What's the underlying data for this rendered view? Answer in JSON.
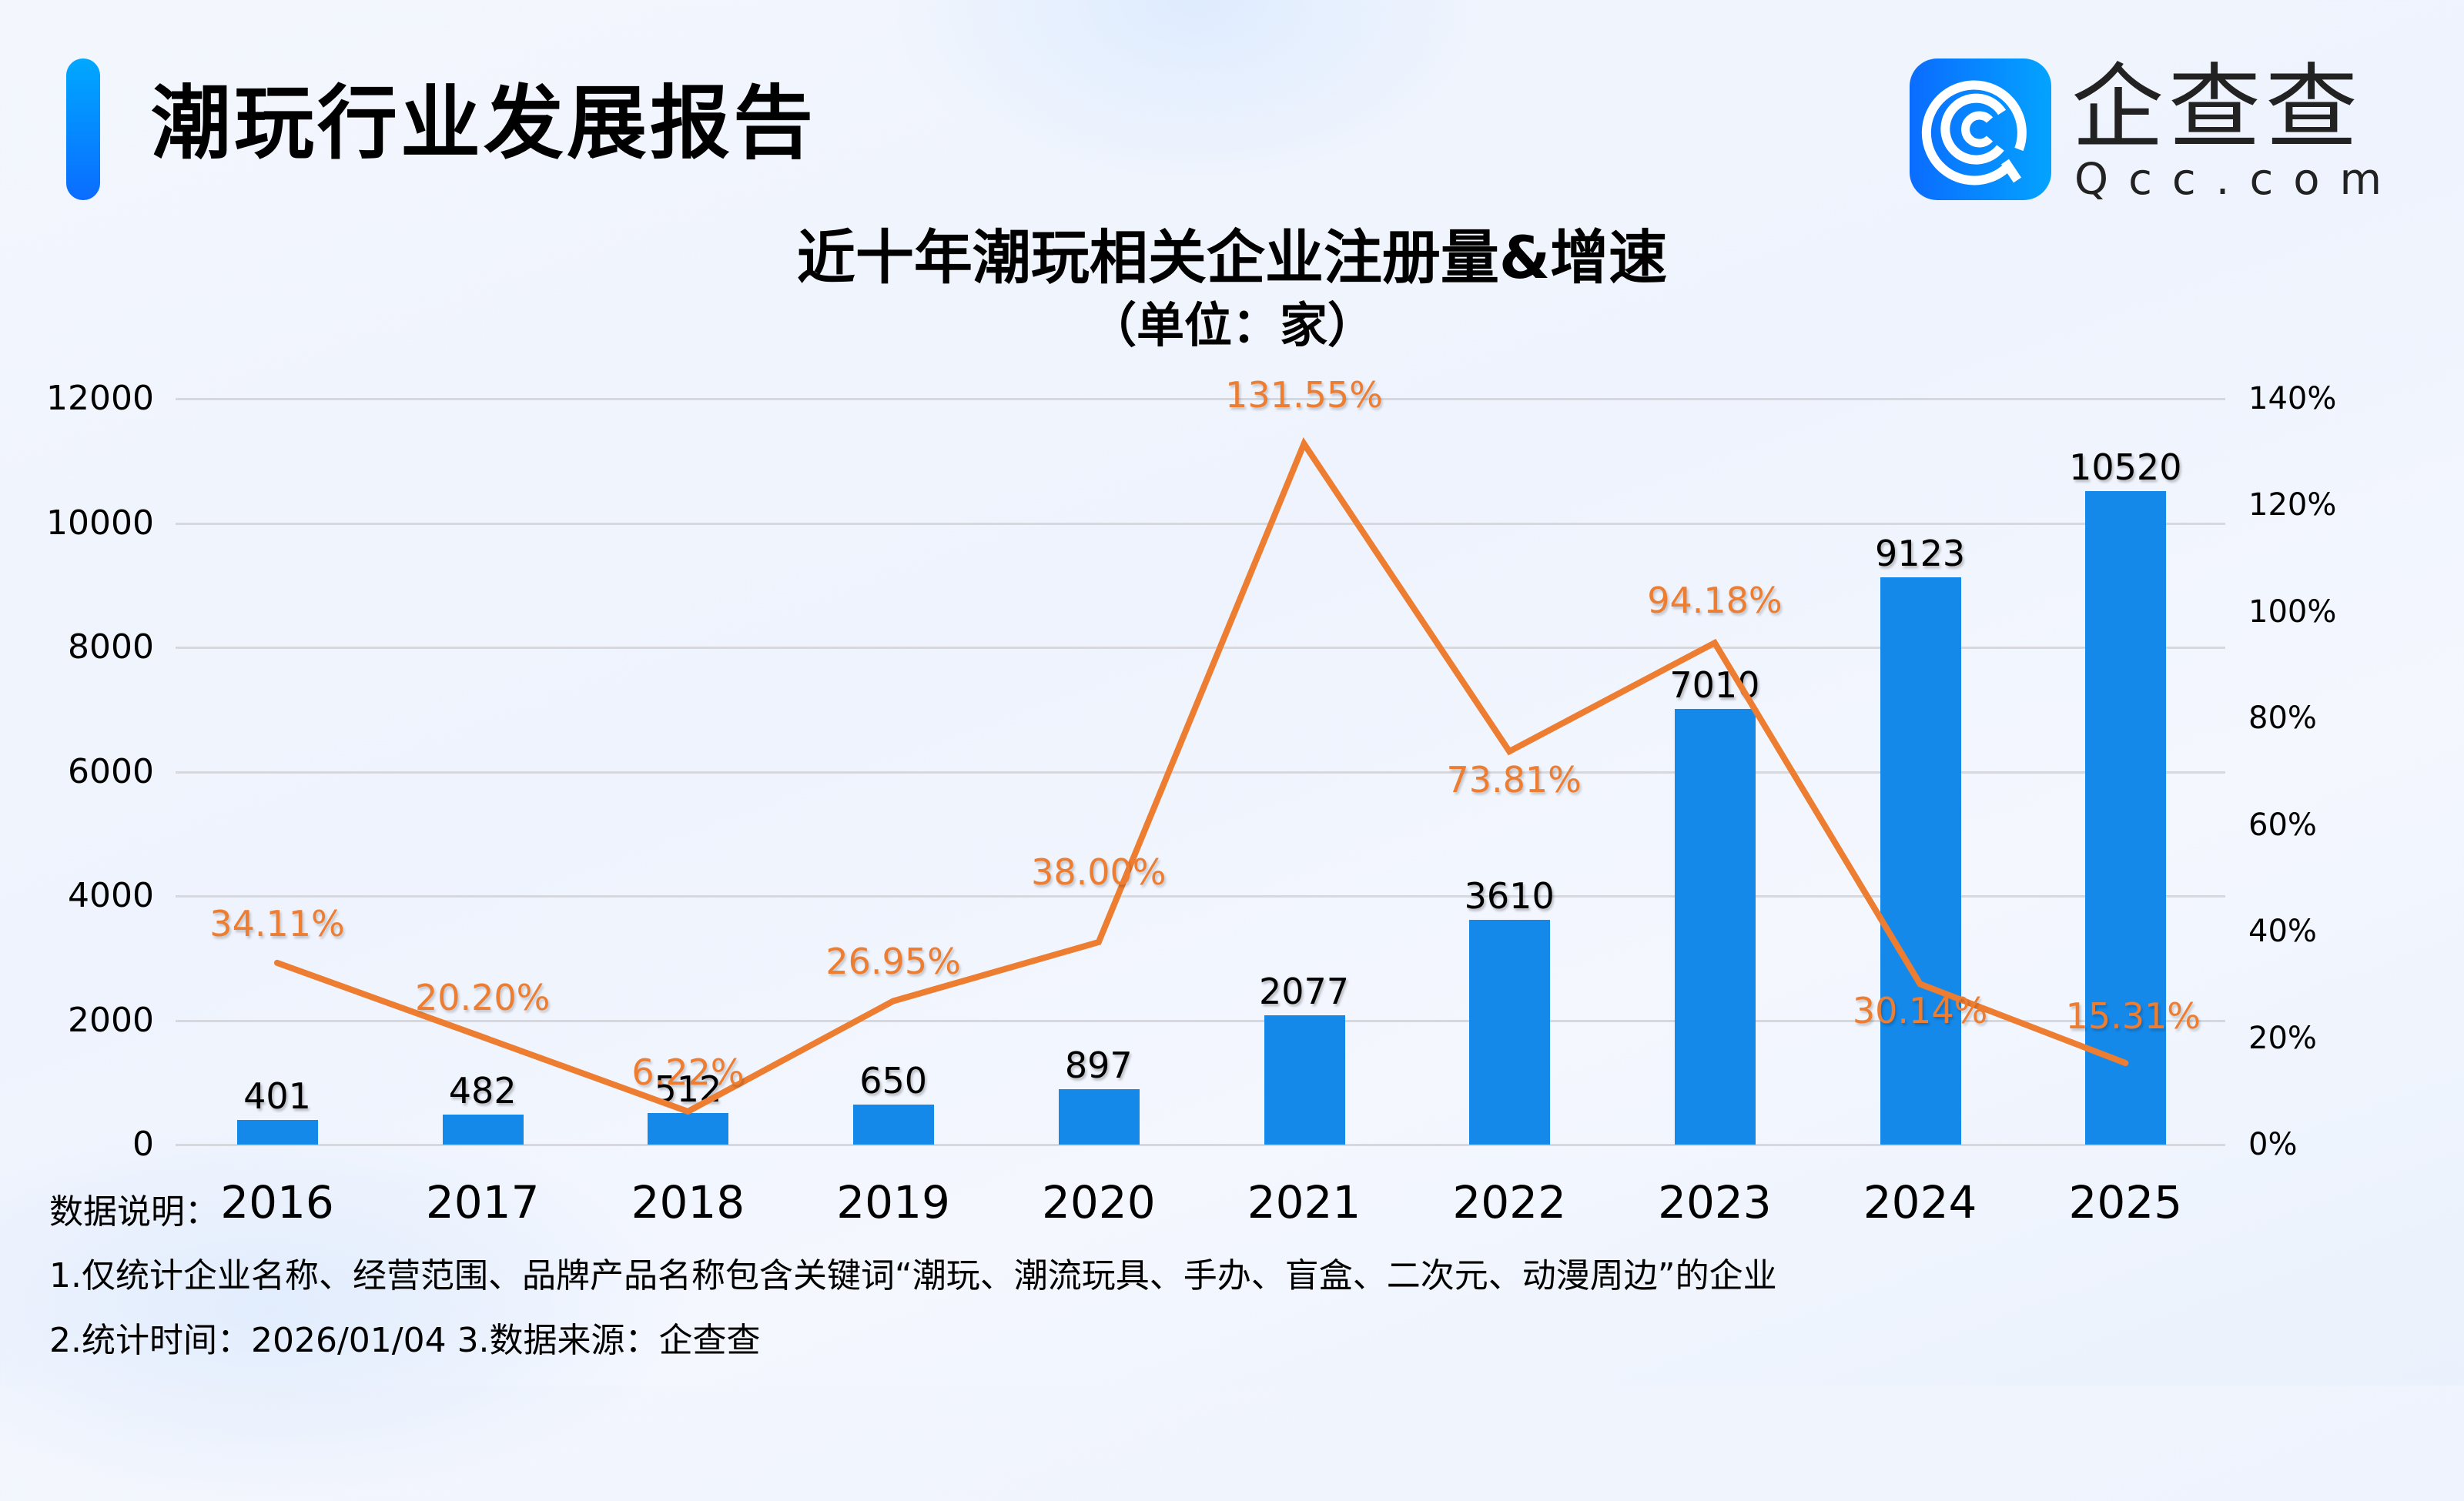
{
  "header": {
    "report_title": "潮玩行业发展报告",
    "logo": {
      "icon": "qcc-logo-icon",
      "name_cn": "企查查",
      "name_en": "Qcc.com"
    }
  },
  "colors": {
    "bar": "#1589ea",
    "line": "#ed7d31",
    "accent": "#0a6cff"
  },
  "chart_data": {
    "type": "bar+line",
    "title": "近十年潮玩相关企业注册量&增速",
    "subtitle": "（单位：家）",
    "categories": [
      "2016",
      "2017",
      "2018",
      "2019",
      "2020",
      "2021",
      "2022",
      "2023",
      "2024",
      "2025"
    ],
    "series": [
      {
        "name": "注册量",
        "type": "bar",
        "axis": "left",
        "values": [
          401,
          482,
          512,
          650,
          897,
          2077,
          3610,
          7010,
          9123,
          10520
        ],
        "labels": [
          "401",
          "482",
          "512",
          "650",
          "897",
          "2077",
          "3610",
          "7010",
          "9123",
          "10520"
        ]
      },
      {
        "name": "增速",
        "type": "line",
        "axis": "right",
        "values": [
          34.11,
          20.2,
          6.22,
          26.95,
          38.0,
          131.55,
          73.81,
          94.18,
          30.14,
          15.31
        ],
        "labels": [
          "34.11%",
          "20.20%",
          "6.22%",
          "26.95%",
          "38.00%",
          "131.55%",
          "73.81%",
          "94.18%",
          "30.14%",
          "15.31%"
        ]
      }
    ],
    "y_left": {
      "ticks": [
        "12000",
        "10000",
        "8000",
        "6000",
        "4000",
        "2000",
        "0"
      ],
      "ylim": [
        0,
        12000
      ]
    },
    "y_right": {
      "ticks": [
        "140%",
        "120%",
        "100%",
        "80%",
        "60%",
        "40%",
        "20%",
        "0%"
      ],
      "ylim": [
        0,
        140
      ]
    },
    "grid": true,
    "legend": null
  },
  "notes": {
    "head": "数据说明：",
    "line1": "1.仅统计企业名称、经营范围、品牌产品名称包含关键词“潮玩、潮流玩具、手办、盲盒、二次元、动漫周边”的企业",
    "line2": "2.统计时间：2026/01/04    3.数据来源：企查查"
  }
}
